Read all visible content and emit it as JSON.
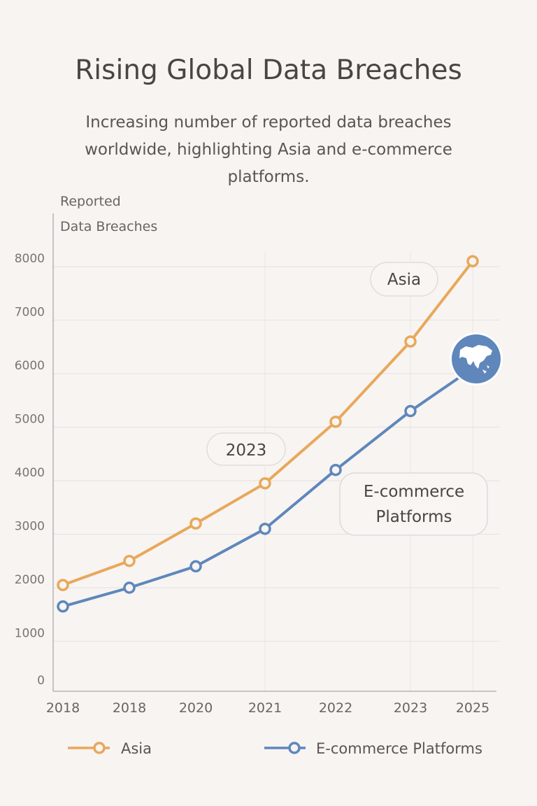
{
  "chart_data": {
    "type": "line",
    "title": "Rising Global Data Breaches",
    "subtitle": "Increasing number of reported data breaches worldwide, highlighting Asia and e-commerce platforms.",
    "ylabel_lines": [
      "Reported",
      "Data Breaches"
    ],
    "xlabel": "",
    "categories": [
      "2018",
      "2018",
      "2020",
      "2021",
      "2022",
      "2023",
      "2025"
    ],
    "yticks": [
      0,
      1000,
      2000,
      3000,
      4000,
      5000,
      6000,
      7000,
      8000
    ],
    "ylim": [
      0,
      8200
    ],
    "grid": true,
    "series": [
      {
        "name": "Asia",
        "color": "#e8a85a",
        "values": [
          2050,
          2500,
          3200,
          3950,
          5100,
          6600,
          8100
        ]
      },
      {
        "name": "E-commerce Platforms",
        "color": "#5f87bb",
        "values": [
          1650,
          2000,
          2400,
          3100,
          4200,
          5300,
          6100
        ]
      }
    ],
    "annotations": {
      "asia_label": "Asia",
      "year_label": "2023",
      "ecommerce_label_lines": [
        "E-commerce",
        "Platforms"
      ],
      "marker_icon": "asia-globe-icon"
    },
    "legend_placement": "bottom"
  }
}
